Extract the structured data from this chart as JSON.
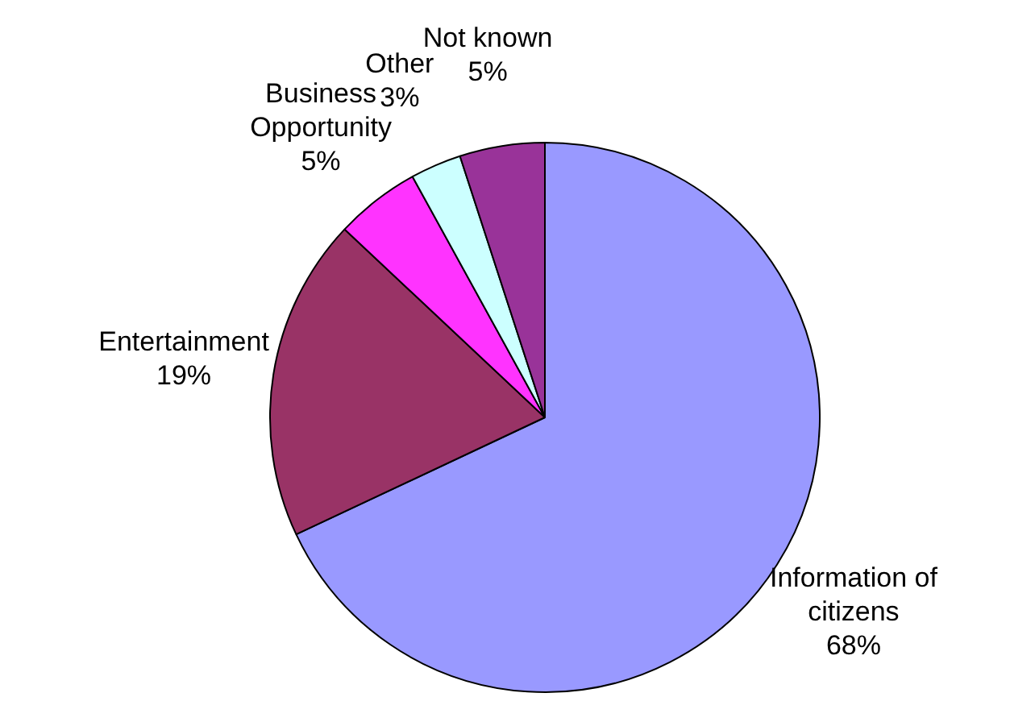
{
  "chart_data": {
    "type": "pie",
    "categories": [
      "Information of citizens",
      "Entertainment",
      "Business Opportunity",
      "Other",
      "Not known"
    ],
    "values": [
      68,
      19,
      5,
      3,
      5
    ],
    "value_labels": [
      "68%",
      "19%",
      "5%",
      "3%",
      "5%"
    ],
    "colors": [
      "#9999ff",
      "#993366",
      "#ff33ff",
      "#ccffff",
      "#993399"
    ],
    "legend": false
  }
}
